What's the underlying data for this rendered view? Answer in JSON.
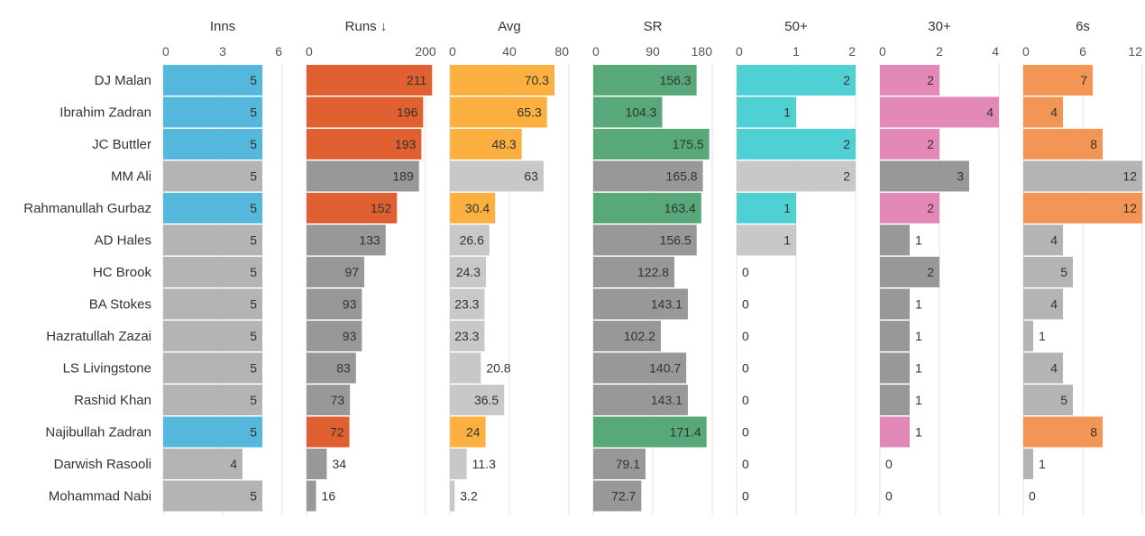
{
  "chart_data": {
    "type": "bar",
    "players": [
      "DJ Malan",
      "Ibrahim Zadran",
      "JC Buttler",
      "MM Ali",
      "Rahmanullah Gurbaz",
      "AD Hales",
      "HC Brook",
      "BA Stokes",
      "Hazratullah Zazai",
      "LS Livingstone",
      "Rashid Khan",
      "Najibullah Zadran",
      "Darwish Rasooli",
      "Mohammad Nabi"
    ],
    "highlight": [
      true,
      true,
      true,
      false,
      true,
      false,
      false,
      false,
      false,
      false,
      false,
      true,
      false,
      false
    ],
    "columns": [
      {
        "name": "Inns",
        "ticks": [
          "0",
          "3",
          "6"
        ],
        "max": 6,
        "color": "#55b7dc",
        "values": [
          5,
          5,
          5,
          5,
          5,
          5,
          5,
          5,
          5,
          5,
          5,
          5,
          4,
          5
        ],
        "labels": [
          "5",
          "5",
          "5",
          "5",
          "5",
          "5",
          "5",
          "5",
          "5",
          "5",
          "5",
          "5",
          "4",
          "5"
        ]
      },
      {
        "name": "Runs ↓",
        "ticks": [
          "0",
          "200"
        ],
        "max": 200,
        "color": "#e06032",
        "values": [
          211,
          196,
          193,
          189,
          152,
          133,
          97,
          93,
          93,
          83,
          73,
          72,
          34,
          16
        ],
        "labels": [
          "211",
          "196",
          "193",
          "189",
          "152",
          "133",
          "97",
          "93",
          "93",
          "83",
          "73",
          "72",
          "34",
          "16"
        ]
      },
      {
        "name": "Avg",
        "ticks": [
          "0",
          "40",
          "80"
        ],
        "max": 80,
        "color": "#fbb040",
        "values": [
          70.3,
          65.3,
          48.3,
          63,
          30.4,
          26.6,
          24.3,
          23.3,
          23.3,
          20.8,
          36.5,
          24,
          11.3,
          3.2
        ],
        "labels": [
          "70.3",
          "65.3",
          "48.3",
          "63",
          "30.4",
          "26.6",
          "24.3",
          "23.3",
          "23.3",
          "20.8",
          "36.5",
          "24",
          "11.3",
          "3.2"
        ]
      },
      {
        "name": "SR",
        "ticks": [
          "0",
          "90",
          "180"
        ],
        "max": 180,
        "color": "#58a87a",
        "values": [
          156.3,
          104.3,
          175.5,
          165.8,
          163.4,
          156.5,
          122.8,
          143.1,
          102.2,
          140.7,
          143.1,
          171.4,
          79.1,
          72.7
        ],
        "labels": [
          "156.3",
          "104.3",
          "175.5",
          "165.8",
          "163.4",
          "156.5",
          "122.8",
          "143.1",
          "102.2",
          "140.7",
          "143.1",
          "171.4",
          "79.1",
          "72.7"
        ]
      },
      {
        "name": "50+",
        "ticks": [
          "0",
          "1",
          "2"
        ],
        "max": 2,
        "color": "#4fd1d3",
        "values": [
          2,
          1,
          2,
          2,
          1,
          1,
          0,
          0,
          0,
          0,
          0,
          0,
          0,
          0
        ],
        "labels": [
          "2",
          "1",
          "2",
          "2",
          "1",
          "1",
          "0",
          "0",
          "0",
          "0",
          "0",
          "0",
          "0",
          "0"
        ]
      },
      {
        "name": "30+",
        "ticks": [
          "0",
          "2",
          "4"
        ],
        "max": 4,
        "color": "#e389b8",
        "values": [
          2,
          4,
          2,
          3,
          2,
          1,
          2,
          1,
          1,
          1,
          1,
          1,
          0,
          0
        ],
        "labels": [
          "2",
          "4",
          "2",
          "3",
          "2",
          "1",
          "2",
          "1",
          "1",
          "1",
          "1",
          "1",
          "0",
          "0"
        ]
      },
      {
        "name": "6s",
        "ticks": [
          "0",
          "6",
          "12"
        ],
        "max": 12,
        "color": "#f39655",
        "values": [
          7,
          4,
          8,
          12,
          12,
          4,
          5,
          4,
          1,
          4,
          5,
          8,
          1,
          0
        ],
        "labels": [
          "7",
          "4",
          "8",
          "12",
          "12",
          "4",
          "5",
          "4",
          "1",
          "4",
          "5",
          "8",
          "1",
          "0"
        ]
      }
    ],
    "grid": true,
    "legend": "none"
  }
}
